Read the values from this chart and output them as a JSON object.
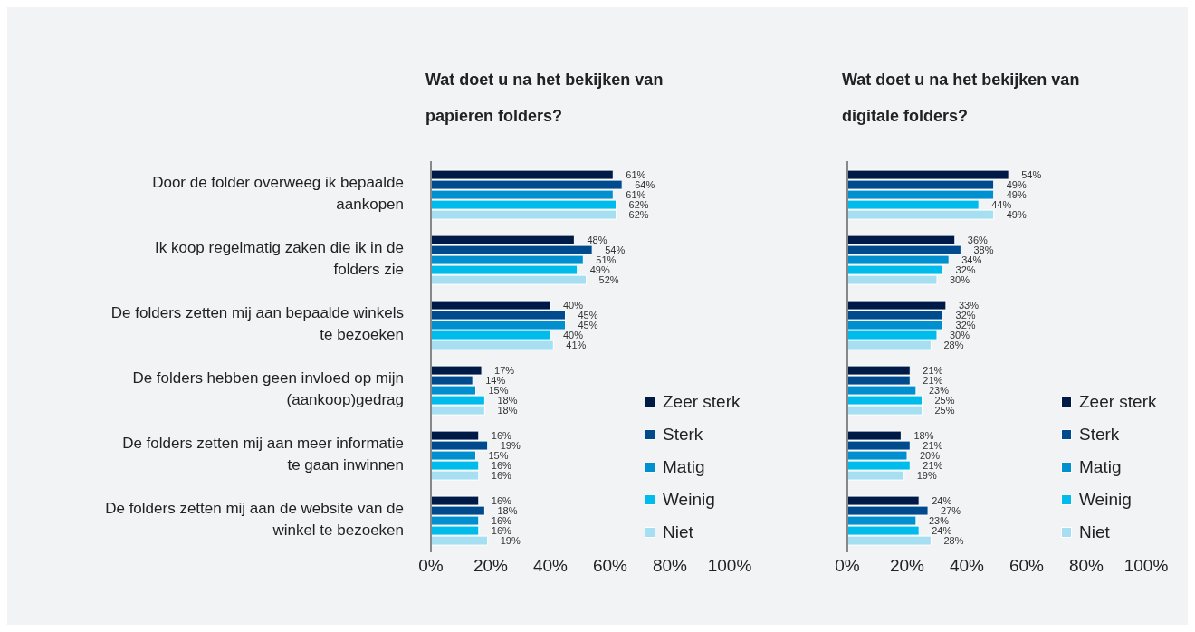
{
  "chart_data": [
    {
      "type": "bar",
      "orientation": "horizontal",
      "title": "Wat doet u na het bekijken van papieren folders?",
      "categories": [
        "Door de folder overweeg ik bepaalde aankopen",
        "Ik koop regelmatig zaken die ik in de folders zie",
        "De folders zetten mij aan bepaalde winkels te bezoeken",
        "De folders hebben geen invloed op mijn (aankoop)gedrag",
        "De folders zetten mij aan meer informatie te gaan inwinnen",
        "De folders zetten mij aan de website van de winkel te bezoeken"
      ],
      "series": [
        {
          "name": "Zeer sterk",
          "color": "#001a47",
          "values": [
            61,
            48,
            40,
            17,
            16,
            16
          ],
          "value_labels": [
            "61%",
            "48%",
            "40%",
            "17%",
            "16%",
            "16%"
          ]
        },
        {
          "name": "Sterk",
          "color": "#004b8d",
          "values": [
            64,
            54,
            45,
            14,
            19,
            18
          ],
          "value_labels": [
            "64%",
            "54%",
            "45%",
            "14%",
            "19%",
            "18%"
          ]
        },
        {
          "name": "Matig",
          "color": "#0090d0",
          "values": [
            61,
            51,
            45,
            15,
            15,
            16
          ],
          "value_labels": [
            "61%",
            "51%",
            "45%",
            "15%",
            "15%",
            "16%"
          ]
        },
        {
          "name": "Weinig",
          "color": "#00bcec",
          "values": [
            62,
            49,
            40,
            18,
            16,
            16
          ],
          "value_labels": [
            "62%",
            "49%",
            "40%",
            "18%",
            "16%",
            "16%"
          ]
        },
        {
          "name": "Niet",
          "color": "#a6dff2",
          "values": [
            62,
            52,
            41,
            18,
            16,
            19
          ],
          "value_labels": [
            "62%",
            "52%",
            "41%",
            "18%",
            "16%",
            "19%"
          ]
        }
      ],
      "xlim": [
        0,
        100
      ],
      "xticks": [
        {
          "value": 0,
          "label": "0%"
        },
        {
          "value": 20,
          "label": "20%"
        },
        {
          "value": 40,
          "label": "40%"
        },
        {
          "value": 60,
          "label": "60%"
        },
        {
          "value": 80,
          "label": "80%"
        },
        {
          "value": 100,
          "label": "100%"
        }
      ],
      "grid": false,
      "legend": "bottom right"
    },
    {
      "type": "bar",
      "orientation": "horizontal",
      "title": "Wat doet u na het bekijken van digitale folders?",
      "categories": [
        null,
        null,
        null,
        null,
        null,
        null
      ],
      "series": [
        {
          "name": "Zeer sterk",
          "color": "#001a47",
          "values": [
            54,
            36,
            33,
            21,
            18,
            24
          ],
          "value_labels": [
            "54%",
            "36%",
            "33%",
            "21%",
            "18%",
            "24%"
          ]
        },
        {
          "name": "Sterk",
          "color": "#004b8d",
          "values": [
            49,
            38,
            32,
            21,
            21,
            27
          ],
          "value_labels": [
            "49%",
            "38%",
            "32%",
            "21%",
            "21%",
            "27%"
          ]
        },
        {
          "name": "Matig",
          "color": "#0090d0",
          "values": [
            49,
            34,
            32,
            23,
            20,
            23
          ],
          "value_labels": [
            "49%",
            "34%",
            "32%",
            "23%",
            "20%",
            "23%"
          ]
        },
        {
          "name": "Weinig",
          "color": "#00bcec",
          "values": [
            44,
            32,
            30,
            25,
            21,
            24
          ],
          "value_labels": [
            "44%",
            "32%",
            "30%",
            "25%",
            "21%",
            "24%"
          ]
        },
        {
          "name": "Niet",
          "color": "#a6dff2",
          "values": [
            49,
            30,
            28,
            25,
            19,
            28
          ],
          "value_labels": [
            "49%",
            "30%",
            "28%",
            "25%",
            "19%",
            "28%"
          ]
        }
      ],
      "xlim": [
        0,
        100
      ],
      "xticks": [
        {
          "value": 0,
          "label": "0%"
        },
        {
          "value": 20,
          "label": "20%"
        },
        {
          "value": 40,
          "label": "40%"
        },
        {
          "value": 60,
          "label": "60%"
        },
        {
          "value": 80,
          "label": "80%"
        },
        {
          "value": 100,
          "label": "100%"
        }
      ],
      "grid": false,
      "legend": "bottom right"
    }
  ]
}
